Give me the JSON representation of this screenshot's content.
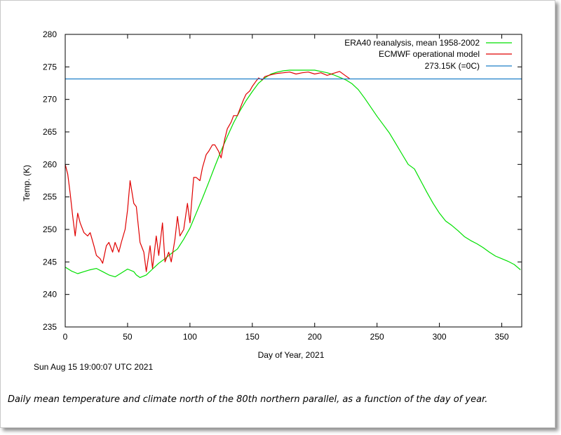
{
  "chart_data": {
    "type": "line",
    "title": "",
    "xlabel": "Day of Year, 2021",
    "ylabel": "Temp. (K)",
    "xlim": [
      0,
      366
    ],
    "ylim": [
      235,
      280
    ],
    "xticks": [
      0,
      50,
      100,
      150,
      200,
      250,
      300,
      350
    ],
    "yticks": [
      235,
      240,
      245,
      250,
      255,
      260,
      265,
      270,
      275,
      280
    ],
    "grid": false,
    "legend_position": "top-right",
    "series": [
      {
        "name": "ERA40 reanalysis, mean 1958-2002",
        "color": "#00e000",
        "x": [
          0,
          5,
          10,
          15,
          20,
          25,
          30,
          35,
          40,
          45,
          50,
          55,
          57,
          60,
          65,
          70,
          75,
          80,
          85,
          90,
          95,
          100,
          105,
          110,
          115,
          120,
          125,
          130,
          135,
          140,
          145,
          150,
          155,
          160,
          165,
          170,
          175,
          180,
          185,
          190,
          195,
          200,
          205,
          210,
          215,
          220,
          225,
          230,
          235,
          240,
          245,
          250,
          255,
          260,
          265,
          270,
          275,
          280,
          285,
          290,
          295,
          300,
          305,
          310,
          315,
          320,
          325,
          330,
          335,
          340,
          345,
          350,
          355,
          360,
          365
        ],
        "y": [
          244.2,
          243.6,
          243.2,
          243.5,
          243.8,
          244.0,
          243.5,
          243.0,
          242.7,
          243.3,
          243.9,
          243.5,
          243.0,
          242.6,
          243.0,
          243.9,
          244.8,
          245.5,
          246.3,
          247.0,
          248.5,
          250.2,
          252.5,
          254.8,
          257.2,
          259.7,
          262.1,
          264.3,
          266.4,
          268.2,
          269.8,
          271.2,
          272.5,
          273.3,
          273.9,
          274.2,
          274.4,
          274.5,
          274.5,
          274.5,
          274.5,
          274.5,
          274.3,
          274.1,
          273.8,
          273.4,
          273.0,
          272.4,
          271.5,
          270.2,
          268.8,
          267.4,
          266.1,
          264.8,
          263.2,
          261.6,
          260.0,
          259.3,
          257.5,
          255.7,
          254.0,
          252.5,
          251.3,
          250.6,
          249.8,
          248.9,
          248.3,
          247.8,
          247.2,
          246.5,
          245.9,
          245.5,
          245.1,
          244.6,
          243.8
        ]
      },
      {
        "name": "ECMWF operational model",
        "color": "#e00000",
        "x": [
          0,
          2,
          4,
          6,
          8,
          10,
          12,
          15,
          18,
          20,
          23,
          25,
          28,
          30,
          33,
          35,
          38,
          40,
          43,
          45,
          48,
          50,
          52,
          55,
          57,
          60,
          63,
          65,
          68,
          70,
          73,
          75,
          78,
          80,
          83,
          85,
          88,
          90,
          92,
          95,
          98,
          100,
          103,
          105,
          108,
          110,
          113,
          115,
          118,
          120,
          123,
          125,
          128,
          130,
          133,
          135,
          138,
          140,
          143,
          145,
          148,
          150,
          153,
          155,
          158,
          160,
          165,
          170,
          175,
          180,
          185,
          190,
          195,
          200,
          205,
          210,
          215,
          220,
          225,
          228
        ],
        "y": [
          260.0,
          258.5,
          255.5,
          252.0,
          249.0,
          252.5,
          251.0,
          249.5,
          249.0,
          249.5,
          247.5,
          246.0,
          245.5,
          244.8,
          247.5,
          248.0,
          246.5,
          248.0,
          246.5,
          248.0,
          250.0,
          253.0,
          257.5,
          254.0,
          253.5,
          248.0,
          246.5,
          243.5,
          247.5,
          244.0,
          249.0,
          246.0,
          251.0,
          245.0,
          246.5,
          245.0,
          248.5,
          252.0,
          249.0,
          250.0,
          254.0,
          251.0,
          258.0,
          258.0,
          257.5,
          259.5,
          261.5,
          262.0,
          263.0,
          263.0,
          262.0,
          261.0,
          264.0,
          265.5,
          266.5,
          267.5,
          267.5,
          268.5,
          270.0,
          270.8,
          271.3,
          272.0,
          272.8,
          273.3,
          273.0,
          273.5,
          273.8,
          274.0,
          274.1,
          274.2,
          273.9,
          274.1,
          274.2,
          273.9,
          274.1,
          273.7,
          274.0,
          274.3,
          273.6,
          273.2
        ]
      },
      {
        "name": "273.15K (=0C)",
        "color": "#1e7fc8",
        "x": [
          0,
          366
        ],
        "y": [
          273.15,
          273.15
        ]
      }
    ]
  },
  "timestamp": "Sun Aug 15 19:00:07 UTC 2021",
  "caption": "Daily mean temperature and climate north of the 80th northern parallel, as a function of the day of year."
}
